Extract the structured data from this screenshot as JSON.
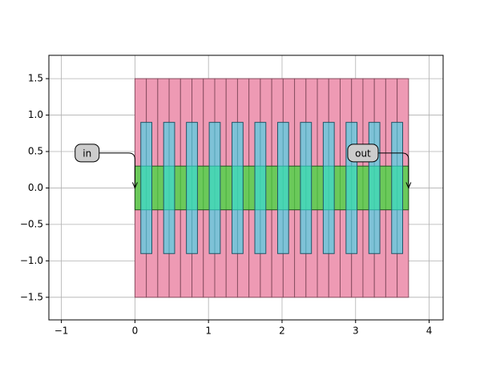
{
  "chart_data": {
    "type": "layout",
    "xlim": [
      -1.17,
      4.19
    ],
    "ylim": [
      -1.81,
      1.82
    ],
    "xticks": [
      {
        "value": -1,
        "label": "−1"
      },
      0,
      1,
      2,
      3,
      4
    ],
    "yticks": [
      {
        "value": -1.5,
        "label": "−1.5"
      },
      {
        "value": -1.0,
        "label": "−1.0"
      },
      {
        "value": -0.5,
        "label": "−0.5"
      },
      {
        "value": 0,
        "label": "0.0"
      },
      {
        "value": 0.5,
        "label": "0.5"
      },
      {
        "value": 1.0,
        "label": "1.0"
      },
      {
        "value": 1.5,
        "label": "1.5"
      }
    ],
    "grid": true,
    "layers": [
      {
        "color": "#ee9ab4",
        "edge": "#8a4f62",
        "opacity": 1,
        "rects": [
          [
            0,
            -1.5,
            0.155,
            1.5
          ],
          [
            0.155,
            -1.5,
            0.31,
            1.5
          ],
          [
            0.31,
            -1.5,
            0.465,
            1.5
          ],
          [
            0.465,
            -1.5,
            0.62,
            1.5
          ],
          [
            0.62,
            -1.5,
            0.775,
            1.5
          ],
          [
            0.775,
            -1.5,
            0.93,
            1.5
          ],
          [
            0.93,
            -1.5,
            1.085,
            1.5
          ],
          [
            1.085,
            -1.5,
            1.24,
            1.5
          ],
          [
            1.24,
            -1.5,
            1.395,
            1.5
          ],
          [
            1.395,
            -1.5,
            1.55,
            1.5
          ],
          [
            1.55,
            -1.5,
            1.705,
            1.5
          ],
          [
            1.705,
            -1.5,
            1.86,
            1.5
          ],
          [
            1.86,
            -1.5,
            2.015,
            1.5
          ],
          [
            2.015,
            -1.5,
            2.17,
            1.5
          ],
          [
            2.17,
            -1.5,
            2.325,
            1.5
          ],
          [
            2.325,
            -1.5,
            2.48,
            1.5
          ],
          [
            2.48,
            -1.5,
            2.635,
            1.5
          ],
          [
            2.635,
            -1.5,
            2.79,
            1.5
          ],
          [
            2.79,
            -1.5,
            2.945,
            1.5
          ],
          [
            2.945,
            -1.5,
            3.1,
            1.5
          ],
          [
            3.1,
            -1.5,
            3.255,
            1.5
          ],
          [
            3.255,
            -1.5,
            3.41,
            1.5
          ],
          [
            3.41,
            -1.5,
            3.565,
            1.5
          ],
          [
            3.565,
            -1.5,
            3.72,
            1.5
          ]
        ]
      },
      {
        "color": "#33dd33",
        "edge": "#225522",
        "opacity": 0.7,
        "rects": [
          [
            0,
            -0.3,
            3.72,
            0.3
          ]
        ]
      },
      {
        "color": "#33ddee",
        "edge": "#225566",
        "opacity": 0.6,
        "rects": [
          [
            0.08,
            -0.9,
            0.23,
            0.9
          ],
          [
            0.39,
            -0.9,
            0.54,
            0.9
          ],
          [
            0.7,
            -0.9,
            0.85,
            0.9
          ],
          [
            1.01,
            -0.9,
            1.16,
            0.9
          ],
          [
            1.32,
            -0.9,
            1.47,
            0.9
          ],
          [
            1.63,
            -0.9,
            1.78,
            0.9
          ],
          [
            1.94,
            -0.9,
            2.09,
            0.9
          ],
          [
            2.25,
            -0.9,
            2.4,
            0.9
          ],
          [
            2.56,
            -0.9,
            2.71,
            0.9
          ],
          [
            2.87,
            -0.9,
            3.02,
            0.9
          ],
          [
            3.18,
            -0.9,
            3.33,
            0.9
          ],
          [
            3.49,
            -0.9,
            3.64,
            0.9
          ]
        ]
      }
    ],
    "annotations": [
      {
        "text": "in",
        "xy": [
          0,
          0
        ],
        "xytext": [
          -0.65,
          0.48
        ]
      },
      {
        "text": "out",
        "xy": [
          3.72,
          0
        ],
        "xytext": [
          3.1,
          0.48
        ]
      }
    ]
  }
}
